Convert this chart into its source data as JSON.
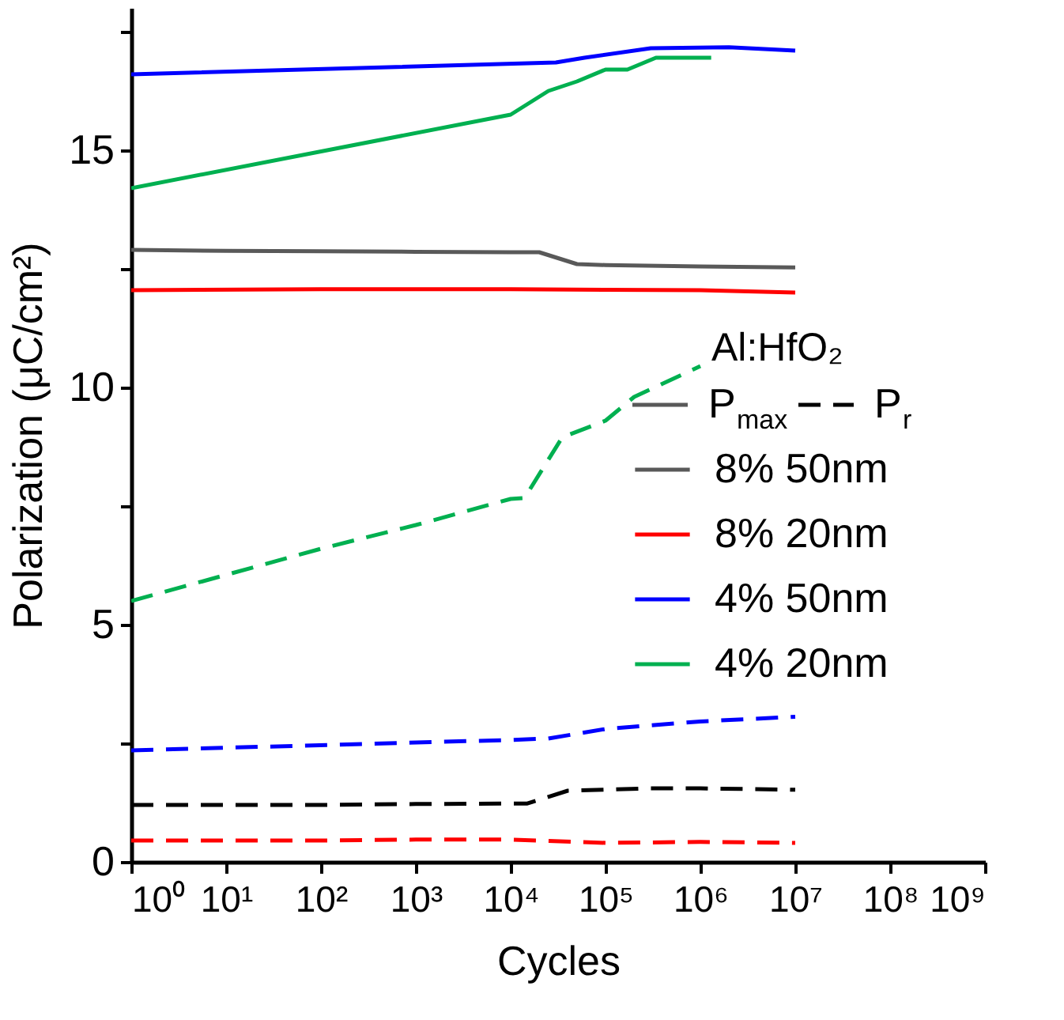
{
  "chart_data": {
    "type": "line",
    "xlabel": "Cycles",
    "ylabel": "Polarization (μC/cm²)",
    "legend_title": "Al:HfO₂",
    "legend": "right",
    "grid": false,
    "log": "x",
    "marker": "none",
    "xlim": [
      1,
      1000000000
    ],
    "xticks": [
      {
        "value": 1,
        "label": "10⁰"
      },
      {
        "value": 10,
        "label": "10¹"
      },
      {
        "value": 100,
        "label": "10²"
      },
      {
        "value": 1000,
        "label": "10³"
      },
      {
        "value": 10000,
        "label": "10⁴"
      },
      {
        "value": 100000,
        "label": "10⁵"
      },
      {
        "value": 1000000,
        "label": "10⁶"
      },
      {
        "value": 10000000,
        "label": "10⁷"
      },
      {
        "value": 100000000,
        "label": "10⁸"
      },
      {
        "value": 1000000000,
        "label": "10⁹"
      }
    ],
    "ylim": [
      0,
      18
    ],
    "yticks": [
      0,
      {
        "value": 2.5,
        "label": null
      },
      5,
      {
        "value": 7.5,
        "label": null
      },
      10,
      {
        "value": 12.5,
        "label": null
      },
      15,
      {
        "value": 17.5,
        "label": null
      }
    ],
    "annotations": [
      "P$_{max}$",
      "P$_{r}$"
    ],
    "series": [
      {
        "name": "8% 50nm",
        "color": "#595959",
        "line_style": "solid",
        "x": [
          1,
          10,
          100,
          1000,
          10000,
          20000,
          50000,
          100000,
          1000000,
          10000000
        ],
        "values": [
          12.9,
          12.88,
          12.87,
          12.86,
          12.85,
          12.85,
          12.6,
          12.58,
          12.55,
          12.53
        ]
      },
      {
        "name": "8% 20nm",
        "color": "#ff0000",
        "line_style": "solid",
        "x": [
          1,
          100,
          10000,
          100000,
          1000000,
          10000000
        ],
        "values": [
          12.05,
          12.07,
          12.07,
          12.06,
          12.05,
          12.0
        ]
      },
      {
        "name": "4% 50nm",
        "color": "#0000ff",
        "line_style": "solid",
        "x": [
          1,
          30000,
          60000,
          300000,
          2000000,
          10000000
        ],
        "values": [
          16.6,
          16.85,
          16.95,
          17.15,
          17.17,
          17.1
        ]
      },
      {
        "name": "4% 20nm",
        "color": "#00b050",
        "line_style": "solid",
        "x": [
          1,
          10000,
          25000,
          50000,
          100000,
          170000,
          340000,
          1300000
        ],
        "values": [
          14.2,
          15.75,
          16.25,
          16.45,
          16.7,
          16.7,
          16.95,
          16.95
        ]
      },
      {
        "color": "#000000",
        "line_style": "dashed",
        "x": [
          1,
          100,
          1000,
          15000,
          40000,
          300000,
          1000000,
          10000000
        ],
        "values": [
          1.2,
          1.2,
          1.22,
          1.23,
          1.5,
          1.55,
          1.55,
          1.52
        ]
      },
      {
        "color": "#ff0000",
        "line_style": "dashed",
        "x": [
          1,
          100,
          1000,
          10000,
          100000,
          1000000,
          10000000
        ],
        "values": [
          0.45,
          0.45,
          0.47,
          0.47,
          0.4,
          0.42,
          0.4
        ]
      },
      {
        "color": "#0000ff",
        "line_style": "dashed",
        "x": [
          1,
          10000,
          25000,
          100000,
          1000000,
          10000000
        ],
        "values": [
          2.35,
          2.57,
          2.6,
          2.8,
          2.96,
          3.06
        ]
      },
      {
        "color": "#00b050",
        "line_style": "dashed",
        "x": [
          1,
          10,
          100,
          1000,
          10000,
          14000,
          35000,
          100000,
          200000,
          1000000
        ],
        "values": [
          5.5,
          6.05,
          6.6,
          7.1,
          7.65,
          7.67,
          8.95,
          9.3,
          9.8,
          10.45
        ]
      }
    ]
  }
}
